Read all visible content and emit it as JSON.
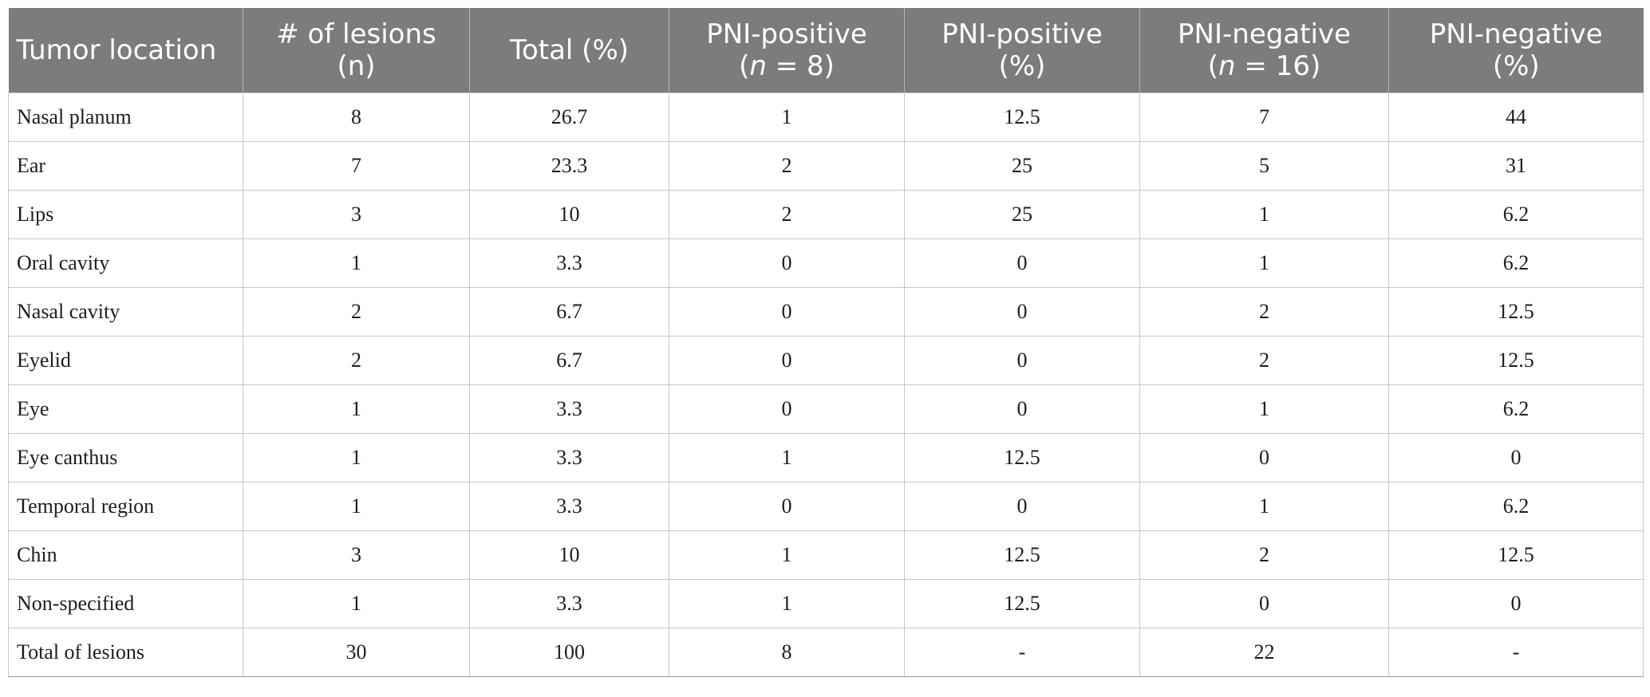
{
  "header": {
    "location": "Tumor location",
    "lesions_line1": "# of lesions",
    "lesions_line2": "(n)",
    "total_pct": "Total (%)",
    "pni_pos_n_line1": "PNI-positive",
    "pni_pos_n_line2_pre": "(",
    "pni_pos_n_line2_it": "n",
    "pni_pos_n_line2_post": " = 8)",
    "pni_pos_pct_line1": "PNI-positive",
    "pni_pos_pct_line2": "(%)",
    "pni_neg_n_line1": "PNI-negative",
    "pni_neg_n_line2_pre": "(",
    "pni_neg_n_line2_it": "n",
    "pni_neg_n_line2_post": " = 16)",
    "pni_neg_pct_line1": "PNI-negative",
    "pni_neg_pct_line2": "(%)"
  },
  "rows": [
    {
      "location": "Nasal planum",
      "lesions": "8",
      "total": "26.7",
      "pos_n": "1",
      "pos_pct": "12.5",
      "neg_n": "7",
      "neg_pct": "44"
    },
    {
      "location": "Ear",
      "lesions": "7",
      "total": "23.3",
      "pos_n": "2",
      "pos_pct": "25",
      "neg_n": "5",
      "neg_pct": "31"
    },
    {
      "location": "Lips",
      "lesions": "3",
      "total": "10",
      "pos_n": "2",
      "pos_pct": "25",
      "neg_n": "1",
      "neg_pct": "6.2"
    },
    {
      "location": "Oral cavity",
      "lesions": "1",
      "total": "3.3",
      "pos_n": "0",
      "pos_pct": "0",
      "neg_n": "1",
      "neg_pct": "6.2"
    },
    {
      "location": "Nasal cavity",
      "lesions": "2",
      "total": "6.7",
      "pos_n": "0",
      "pos_pct": "0",
      "neg_n": "2",
      "neg_pct": "12.5"
    },
    {
      "location": "Eyelid",
      "lesions": "2",
      "total": "6.7",
      "pos_n": "0",
      "pos_pct": "0",
      "neg_n": "2",
      "neg_pct": "12.5"
    },
    {
      "location": "Eye",
      "lesions": "1",
      "total": "3.3",
      "pos_n": "0",
      "pos_pct": "0",
      "neg_n": "1",
      "neg_pct": "6.2"
    },
    {
      "location": "Eye canthus",
      "lesions": "1",
      "total": "3.3",
      "pos_n": "1",
      "pos_pct": "12.5",
      "neg_n": "0",
      "neg_pct": "0"
    },
    {
      "location": "Temporal region",
      "lesions": "1",
      "total": "3.3",
      "pos_n": "0",
      "pos_pct": "0",
      "neg_n": "1",
      "neg_pct": "6.2"
    },
    {
      "location": "Chin",
      "lesions": "3",
      "total": "10",
      "pos_n": "1",
      "pos_pct": "12.5",
      "neg_n": "2",
      "neg_pct": "12.5"
    },
    {
      "location": "Non-specified",
      "lesions": "1",
      "total": "3.3",
      "pos_n": "1",
      "pos_pct": "12.5",
      "neg_n": "0",
      "neg_pct": "0"
    },
    {
      "location": "Total of lesions",
      "lesions": "30",
      "total": "100",
      "pos_n": "8",
      "pos_pct": "-",
      "neg_n": "22",
      "neg_pct": "-"
    }
  ]
}
